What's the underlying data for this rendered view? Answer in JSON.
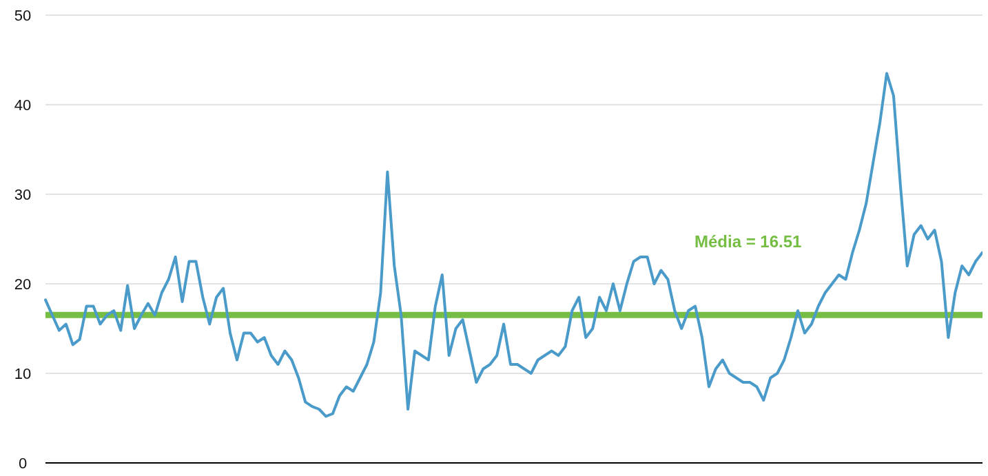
{
  "chart_data": {
    "type": "line",
    "categories": [
      null,
      null,
      null,
      null,
      null,
      null,
      null,
      null,
      null,
      null,
      null,
      null,
      null,
      null,
      null,
      null,
      null,
      null,
      null,
      null,
      null,
      null,
      null,
      null,
      null,
      null,
      null,
      null,
      null,
      null,
      null,
      null,
      null,
      null,
      null,
      null,
      null,
      null,
      null,
      null,
      null,
      null,
      null,
      null,
      null,
      null,
      null,
      null,
      null,
      null,
      null,
      null,
      null,
      null,
      null,
      null,
      null,
      null,
      null,
      null,
      null,
      null,
      null,
      null,
      null,
      null,
      null,
      null,
      null,
      null,
      null,
      null,
      null,
      null,
      null,
      null,
      null,
      null,
      null,
      null,
      null,
      null,
      null,
      null,
      null,
      null,
      null,
      null,
      null,
      null,
      null,
      null,
      null,
      null,
      null,
      null,
      null,
      null,
      null,
      null,
      null,
      null,
      null,
      null,
      null,
      null,
      null,
      null,
      null,
      null,
      null,
      null,
      null,
      null,
      null,
      null,
      null,
      null,
      null,
      null,
      null,
      null,
      null,
      null,
      null,
      null,
      null,
      null,
      null,
      null,
      null,
      null,
      null,
      null,
      null,
      null,
      null,
      null
    ],
    "series": [
      {
        "color": "#4a9bc9",
        "values": [
          18.2,
          16.5,
          14.8,
          15.5,
          13.2,
          13.8,
          17.5,
          17.5,
          15.5,
          16.5,
          17.0,
          14.8,
          19.8,
          15.0,
          16.5,
          17.8,
          16.5,
          19.0,
          20.5,
          23.0,
          18.0,
          22.5,
          22.5,
          18.5,
          15.5,
          18.5,
          19.5,
          14.5,
          11.5,
          14.5,
          14.5,
          13.5,
          14.0,
          12.0,
          11.0,
          12.5,
          11.5,
          9.5,
          6.8,
          6.3,
          6.0,
          5.2,
          5.5,
          7.5,
          8.5,
          8.0,
          9.5,
          11.0,
          13.5,
          19.0,
          32.5,
          22.0,
          16.5,
          6.0,
          12.5,
          12.0,
          11.5,
          17.5,
          21.0,
          12.0,
          15.0,
          16.0,
          12.5,
          9.0,
          10.5,
          11.0,
          12.0,
          15.5,
          11.0,
          11.0,
          10.5,
          10.0,
          11.5,
          12.0,
          12.5,
          12.0,
          13.0,
          17.0,
          18.5,
          14.0,
          15.0,
          18.5,
          17.0,
          20.0,
          17.0,
          20.0,
          22.5,
          23.0,
          23.0,
          20.0,
          21.5,
          20.5,
          17.0,
          15.0,
          17.0,
          17.5,
          14.0,
          8.5,
          10.5,
          11.5,
          10.0,
          9.5,
          9.0,
          9.0,
          8.5,
          7.0,
          9.5,
          10.0,
          11.5,
          14.0,
          17.0,
          14.5,
          15.5,
          17.5,
          19.0,
          20.0,
          21.0,
          20.5,
          23.5,
          26.0,
          29.0,
          33.5,
          38.0,
          43.5,
          41.0,
          31.0,
          22.0,
          25.5,
          26.5,
          25.0,
          26.0,
          22.5,
          14.0,
          19.0,
          22.0,
          21.0,
          22.5,
          23.5
        ]
      }
    ],
    "ylim": [
      0,
      50
    ],
    "yticks": [
      0,
      10,
      20,
      30,
      40,
      50
    ],
    "grid": "y",
    "line_style": "solid",
    "marker": "none",
    "ref_lines": [
      {
        "axis": "y",
        "value": 16.51,
        "label": "Média = 16.51",
        "color": "#76be43"
      }
    ]
  }
}
